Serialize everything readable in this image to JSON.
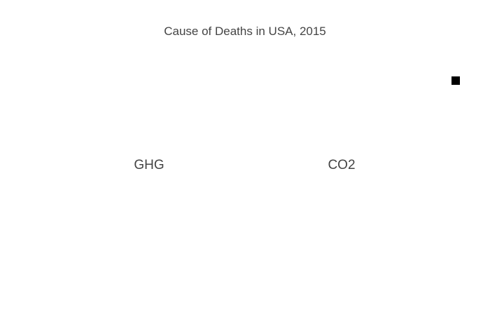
{
  "chart_data": {
    "type": "pie",
    "title": "Cause of Deaths in USA, 2015",
    "subplots": [
      {
        "label": "GHG",
        "slices": []
      },
      {
        "label": "CO2",
        "slices": []
      }
    ],
    "legend": {
      "placement": "top-right",
      "entries": [
        {
          "name": "",
          "color": "#000000"
        }
      ]
    }
  }
}
